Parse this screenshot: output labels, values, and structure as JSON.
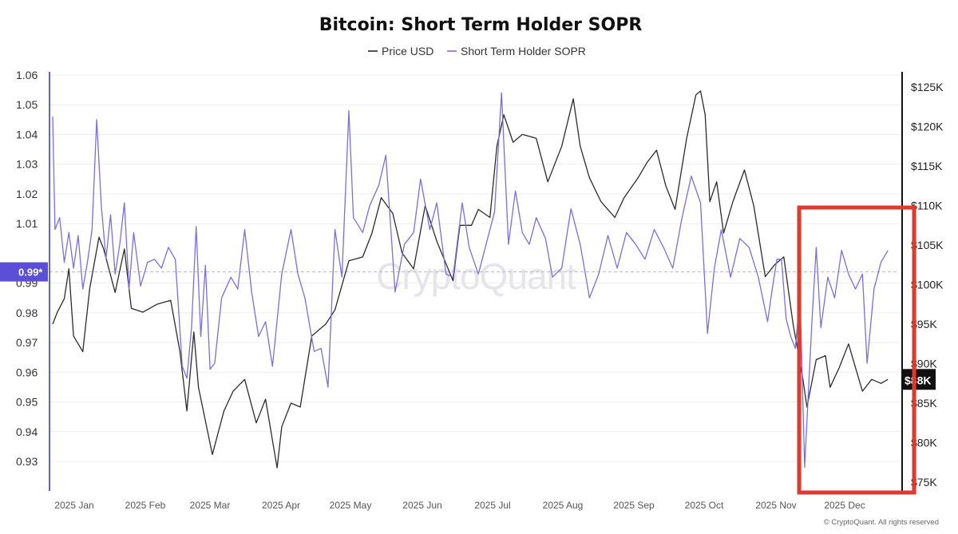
{
  "chart_data": {
    "type": "line",
    "title": "Bitcoin: Short Term Holder SOPR",
    "legend": [
      "Price USD",
      "Short Term Holder SOPR"
    ],
    "legend_placement": "top-center",
    "watermark": "CryptoQuant",
    "copyright": "© CryptoQuant. All rights reserved",
    "x_ticks": [
      "2025 Jan",
      "2025 Feb",
      "2025 Mar",
      "2025 Apr",
      "2025 May",
      "2025 Jun",
      "2025 Jul",
      "2025 Aug",
      "2025 Sep",
      "2025 Oct",
      "2025 Nov",
      "2025 Dec"
    ],
    "y_left": {
      "ticks": [
        "1.06",
        "1.05",
        "1.04",
        "1.03",
        "1.02",
        "1.01",
        "0.99",
        "0.98",
        "0.97",
        "0.96",
        "0.95",
        "0.94",
        "0.93"
      ],
      "ylim": [
        0.92,
        1.06
      ],
      "current_marker": "0.99*",
      "current_value": 0.99
    },
    "y_right": {
      "ticks": [
        "$125K",
        "$120K",
        "$115K",
        "$110K",
        "$105K",
        "$100K",
        "$95K",
        "$90K",
        "$85K",
        "$80K",
        "$75K"
      ],
      "ylim": [
        74000,
        126000
      ],
      "current_marker": "$88K",
      "current_value": 88000
    },
    "grid": "horizontal",
    "highlight_box": "Nov 2025 – Dec 2025 (red)",
    "colors": {
      "price": "#2b2b2b",
      "sopr": "#7b6fd8",
      "marker": "#5a4fd6",
      "highlight": "#e03a2f"
    },
    "series": [
      {
        "name": "Price USD",
        "axis": "right",
        "points": [
          [
            "2024-12-31",
            95000
          ],
          [
            "2025-01-02",
            96500
          ],
          [
            "2025-01-05",
            98200
          ],
          [
            "2025-01-07",
            102000
          ],
          [
            "2025-01-09",
            93500
          ],
          [
            "2025-01-13",
            91500
          ],
          [
            "2025-01-16",
            99500
          ],
          [
            "2025-01-20",
            106000
          ],
          [
            "2025-01-22",
            104500
          ],
          [
            "2025-01-27",
            99000
          ],
          [
            "2025-01-31",
            104500
          ],
          [
            "2025-02-03",
            97000
          ],
          [
            "2025-02-08",
            96500
          ],
          [
            "2025-02-14",
            97500
          ],
          [
            "2025-02-20",
            98000
          ],
          [
            "2025-02-24",
            91500
          ],
          [
            "2025-02-27",
            84000
          ],
          [
            "2025-03-02",
            94000
          ],
          [
            "2025-03-04",
            87000
          ],
          [
            "2025-03-10",
            78500
          ],
          [
            "2025-03-15",
            84000
          ],
          [
            "2025-03-19",
            86500
          ],
          [
            "2025-03-24",
            88000
          ],
          [
            "2025-03-29",
            82500
          ],
          [
            "2025-04-02",
            85500
          ],
          [
            "2025-04-07",
            76800
          ],
          [
            "2025-04-09",
            82000
          ],
          [
            "2025-04-13",
            85000
          ],
          [
            "2025-04-17",
            84500
          ],
          [
            "2025-04-22",
            93500
          ],
          [
            "2025-04-28",
            95000
          ],
          [
            "2025-05-02",
            96800
          ],
          [
            "2025-05-08",
            103000
          ],
          [
            "2025-05-14",
            103500
          ],
          [
            "2025-05-18",
            106500
          ],
          [
            "2025-05-22",
            111000
          ],
          [
            "2025-05-27",
            109000
          ],
          [
            "2025-05-31",
            104000
          ],
          [
            "2025-06-05",
            102000
          ],
          [
            "2025-06-10",
            110000
          ],
          [
            "2025-06-15",
            105500
          ],
          [
            "2025-06-22",
            100500
          ],
          [
            "2025-06-25",
            107500
          ],
          [
            "2025-06-30",
            107500
          ],
          [
            "2025-07-03",
            109500
          ],
          [
            "2025-07-08",
            108500
          ],
          [
            "2025-07-11",
            117500
          ],
          [
            "2025-07-14",
            121500
          ],
          [
            "2025-07-18",
            118000
          ],
          [
            "2025-07-22",
            119000
          ],
          [
            "2025-07-28",
            118500
          ],
          [
            "2025-08-02",
            113000
          ],
          [
            "2025-08-08",
            117500
          ],
          [
            "2025-08-13",
            123500
          ],
          [
            "2025-08-16",
            117500
          ],
          [
            "2025-08-20",
            113500
          ],
          [
            "2025-08-25",
            110500
          ],
          [
            "2025-08-31",
            108500
          ],
          [
            "2025-09-04",
            111000
          ],
          [
            "2025-09-10",
            113500
          ],
          [
            "2025-09-14",
            115500
          ],
          [
            "2025-09-18",
            117000
          ],
          [
            "2025-09-22",
            112500
          ],
          [
            "2025-09-26",
            109500
          ],
          [
            "2025-10-01",
            118500
          ],
          [
            "2025-10-05",
            124000
          ],
          [
            "2025-10-07",
            124500
          ],
          [
            "2025-10-09",
            121500
          ],
          [
            "2025-10-11",
            110500
          ],
          [
            "2025-10-14",
            113000
          ],
          [
            "2025-10-17",
            106500
          ],
          [
            "2025-10-21",
            110500
          ],
          [
            "2025-10-26",
            114500
          ],
          [
            "2025-10-30",
            110000
          ],
          [
            "2025-11-04",
            101000
          ],
          [
            "2025-11-08",
            102500
          ],
          [
            "2025-11-12",
            103500
          ],
          [
            "2025-11-16",
            95000
          ],
          [
            "2025-11-20",
            88500
          ],
          [
            "2025-11-22",
            84500
          ],
          [
            "2025-11-26",
            90500
          ],
          [
            "2025-11-30",
            91000
          ],
          [
            "2025-12-02",
            87000
          ],
          [
            "2025-12-06",
            89500
          ],
          [
            "2025-12-10",
            92500
          ],
          [
            "2025-12-14",
            88500
          ],
          [
            "2025-12-16",
            86500
          ],
          [
            "2025-12-20",
            88000
          ],
          [
            "2025-12-24",
            87500
          ],
          [
            "2025-12-27",
            88000
          ]
        ]
      },
      {
        "name": "Short Term Holder SOPR",
        "axis": "left",
        "points": [
          [
            "2024-12-31",
            1.046
          ],
          [
            "2025-01-01",
            1.008
          ],
          [
            "2025-01-03",
            1.012
          ],
          [
            "2025-01-05",
            0.997
          ],
          [
            "2025-01-07",
            1.007
          ],
          [
            "2025-01-09",
            0.995
          ],
          [
            "2025-01-11",
            1.006
          ],
          [
            "2025-01-13",
            0.988
          ],
          [
            "2025-01-15",
            0.997
          ],
          [
            "2025-01-17",
            1.008
          ],
          [
            "2025-01-19",
            1.045
          ],
          [
            "2025-01-21",
            1.016
          ],
          [
            "2025-01-23",
            0.998
          ],
          [
            "2025-01-25",
            1.013
          ],
          [
            "2025-01-27",
            0.993
          ],
          [
            "2025-01-29",
            1.003
          ],
          [
            "2025-01-31",
            1.017
          ],
          [
            "2025-02-02",
            0.988
          ],
          [
            "2025-02-04",
            1.007
          ],
          [
            "2025-02-07",
            0.989
          ],
          [
            "2025-02-10",
            0.997
          ],
          [
            "2025-02-13",
            0.998
          ],
          [
            "2025-02-16",
            0.995
          ],
          [
            "2025-02-19",
            1.002
          ],
          [
            "2025-02-22",
            0.998
          ],
          [
            "2025-02-25",
            0.962
          ],
          [
            "2025-02-27",
            0.958
          ],
          [
            "2025-03-01",
            0.975
          ],
          [
            "2025-03-03",
            1.009
          ],
          [
            "2025-03-05",
            0.972
          ],
          [
            "2025-03-07",
            0.996
          ],
          [
            "2025-03-09",
            0.961
          ],
          [
            "2025-03-11",
            0.963
          ],
          [
            "2025-03-14",
            0.985
          ],
          [
            "2025-03-18",
            0.992
          ],
          [
            "2025-03-21",
            0.988
          ],
          [
            "2025-03-24",
            1.008
          ],
          [
            "2025-03-27",
            0.987
          ],
          [
            "2025-03-30",
            0.972
          ],
          [
            "2025-04-02",
            0.977
          ],
          [
            "2025-04-05",
            0.962
          ],
          [
            "2025-04-09",
            0.993
          ],
          [
            "2025-04-13",
            1.008
          ],
          [
            "2025-04-16",
            0.993
          ],
          [
            "2025-04-19",
            0.985
          ],
          [
            "2025-04-23",
            0.967
          ],
          [
            "2025-04-26",
            0.968
          ],
          [
            "2025-04-29",
            0.955
          ],
          [
            "2025-05-02",
            1.008
          ],
          [
            "2025-05-05",
            0.992
          ],
          [
            "2025-05-08",
            1.048
          ],
          [
            "2025-05-10",
            1.012
          ],
          [
            "2025-05-14",
            1.007
          ],
          [
            "2025-05-17",
            1.016
          ],
          [
            "2025-05-21",
            1.023
          ],
          [
            "2025-05-24",
            1.033
          ],
          [
            "2025-05-28",
            0.987
          ],
          [
            "2025-06-01",
            1.003
          ],
          [
            "2025-06-05",
            1.007
          ],
          [
            "2025-06-08",
            1.025
          ],
          [
            "2025-06-12",
            1.008
          ],
          [
            "2025-06-15",
            1.017
          ],
          [
            "2025-06-19",
            0.993
          ],
          [
            "2025-06-22",
            0.992
          ],
          [
            "2025-06-26",
            1.017
          ],
          [
            "2025-06-29",
            1.002
          ],
          [
            "2025-07-03",
            0.993
          ],
          [
            "2025-07-06",
            1.002
          ],
          [
            "2025-07-10",
            1.014
          ],
          [
            "2025-07-13",
            1.054
          ],
          [
            "2025-07-16",
            1.003
          ],
          [
            "2025-07-19",
            1.021
          ],
          [
            "2025-07-22",
            1.007
          ],
          [
            "2025-07-25",
            1.003
          ],
          [
            "2025-07-28",
            1.012
          ],
          [
            "2025-08-01",
            1.005
          ],
          [
            "2025-08-04",
            0.992
          ],
          [
            "2025-08-08",
            0.995
          ],
          [
            "2025-08-12",
            1.015
          ],
          [
            "2025-08-16",
            1.003
          ],
          [
            "2025-08-20",
            0.985
          ],
          [
            "2025-08-24",
            0.993
          ],
          [
            "2025-08-28",
            1.006
          ],
          [
            "2025-09-01",
            0.995
          ],
          [
            "2025-09-05",
            1.007
          ],
          [
            "2025-09-09",
            1.003
          ],
          [
            "2025-09-13",
            0.998
          ],
          [
            "2025-09-17",
            1.008
          ],
          [
            "2025-09-21",
            1.002
          ],
          [
            "2025-09-25",
            0.995
          ],
          [
            "2025-09-29",
            1.012
          ],
          [
            "2025-10-03",
            1.026
          ],
          [
            "2025-10-07",
            1.017
          ],
          [
            "2025-10-10",
            0.973
          ],
          [
            "2025-10-13",
            0.995
          ],
          [
            "2025-10-16",
            1.008
          ],
          [
            "2025-10-20",
            0.992
          ],
          [
            "2025-10-24",
            1.005
          ],
          [
            "2025-10-28",
            1.002
          ],
          [
            "2025-11-01",
            0.992
          ],
          [
            "2025-11-05",
            0.977
          ],
          [
            "2025-11-07",
            0.988
          ],
          [
            "2025-11-09",
            0.998
          ],
          [
            "2025-11-11",
            0.998
          ],
          [
            "2025-11-13",
            0.978
          ],
          [
            "2025-11-15",
            0.972
          ],
          [
            "2025-11-17",
            0.968
          ],
          [
            "2025-11-19",
            0.986
          ],
          [
            "2025-11-21",
            0.928
          ],
          [
            "2025-11-24",
            0.975
          ],
          [
            "2025-11-26",
            1.002
          ],
          [
            "2025-11-28",
            0.975
          ],
          [
            "2025-12-01",
            0.992
          ],
          [
            "2025-12-04",
            0.985
          ],
          [
            "2025-12-07",
            1.001
          ],
          [
            "2025-12-10",
            0.993
          ],
          [
            "2025-12-13",
            0.988
          ],
          [
            "2025-12-16",
            0.993
          ],
          [
            "2025-12-18",
            0.963
          ],
          [
            "2025-12-21",
            0.988
          ],
          [
            "2025-12-24",
            0.997
          ],
          [
            "2025-12-27",
            1.001
          ]
        ]
      }
    ]
  }
}
